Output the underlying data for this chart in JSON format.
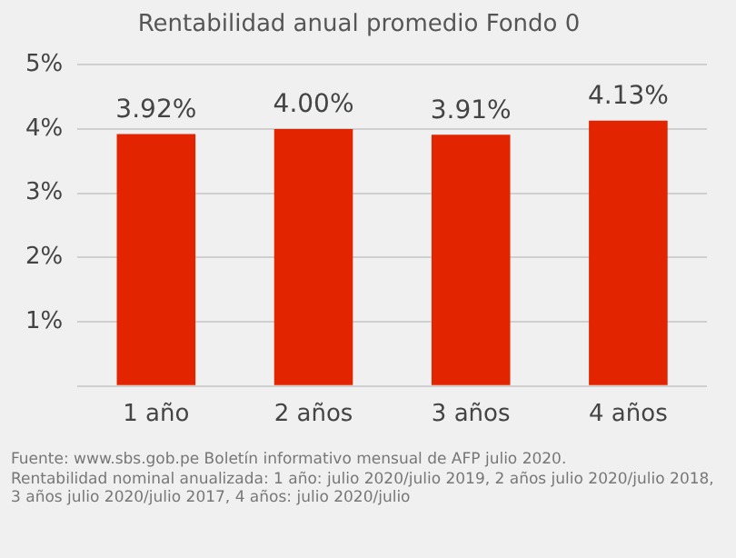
{
  "chart_data": {
    "type": "bar",
    "title": "Rentabilidad anual promedio Fondo 0",
    "categories": [
      "1 año",
      "2 años",
      "3 años",
      "4 años"
    ],
    "values": [
      3.92,
      4.0,
      3.91,
      4.13
    ],
    "value_labels": [
      "3.92%",
      "4.00%",
      "3.91%",
      "4.13%"
    ],
    "color": "#e32400",
    "ylim": [
      0,
      5
    ],
    "yticks": [
      {
        "value": 0,
        "label": null
      },
      {
        "value": 1,
        "label": "1%"
      },
      {
        "value": 2,
        "label": "2%"
      },
      {
        "value": 3,
        "label": "3%"
      },
      {
        "value": 4,
        "label": "4%"
      },
      {
        "value": 5,
        "label": "5%"
      }
    ],
    "grid": "y",
    "annotations": [
      "Fuente: www.sbs.gob.pe Boletín informativo mensual de AFP julio 2020.",
      "Rentabilidad nominal anualizada: 1 año: julio 2020/julio 2019, 2 años julio 2020/julio 2018, 3 años  julio 2020/julio 2017, 4 años: julio 2020/julio"
    ]
  }
}
